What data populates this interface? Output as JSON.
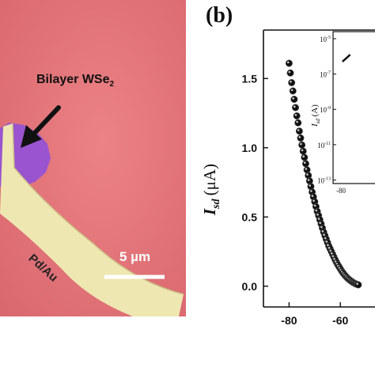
{
  "micrograph": {
    "sample_label": "Bilayer WSe",
    "sample_label_sub": "2",
    "contact_label": "Pd/Au",
    "scale_bar_label": "5 µm",
    "colors": {
      "substrate": "#e4797c",
      "flake": "#9a54cf",
      "metal": "#efe7b2",
      "arrow": "#111111"
    }
  },
  "panel_label": "(b)",
  "chart_data": [
    {
      "type": "scatter",
      "ylabel_main": "I",
      "ylabel_sub": "sd",
      "ylabel_unit": "(μA)",
      "ylim": [
        -0.15,
        1.85
      ],
      "yticks": [
        0.0,
        0.5,
        1.0,
        1.5
      ],
      "ytick_labels": [
        "0.0",
        "0.5",
        "1.0",
        "1.5"
      ],
      "xlim": [
        -90,
        -40
      ],
      "xticks": [
        -80,
        -60
      ],
      "xtick_labels": [
        "-80",
        "-60"
      ],
      "marker_color": "#111111",
      "x": [
        -80,
        -79.5,
        -79,
        -78.5,
        -78,
        -77.5,
        -77,
        -76.5,
        -76,
        -75.5,
        -75,
        -74.5,
        -74,
        -73.5,
        -73,
        -72.5,
        -72,
        -71.5,
        -71,
        -70.5,
        -70,
        -69.5,
        -69,
        -68.5,
        -68,
        -67.5,
        -67,
        -66.5,
        -66,
        -65.5,
        -65,
        -64.5,
        -64,
        -63.5,
        -63,
        -62.5,
        -62,
        -61.5,
        -61,
        -60.5,
        -60,
        -59.5,
        -59,
        -58.5,
        -58,
        -57.5,
        -57,
        -56.5,
        -56,
        -55.5,
        -55,
        -54.5,
        -54,
        -53.5,
        -53
      ],
      "y": [
        1.61,
        1.54,
        1.47,
        1.41,
        1.35,
        1.29,
        1.23,
        1.18,
        1.12,
        1.07,
        1.02,
        0.975,
        0.93,
        0.885,
        0.84,
        0.8,
        0.76,
        0.72,
        0.68,
        0.645,
        0.61,
        0.575,
        0.54,
        0.51,
        0.48,
        0.45,
        0.42,
        0.39,
        0.365,
        0.34,
        0.315,
        0.29,
        0.27,
        0.25,
        0.23,
        0.21,
        0.19,
        0.172,
        0.155,
        0.14,
        0.125,
        0.11,
        0.097,
        0.085,
        0.074,
        0.064,
        0.055,
        0.047,
        0.04,
        0.033,
        0.027,
        0.022,
        0.017,
        0.013,
        0.01
      ]
    },
    {
      "type": "line",
      "ylabel_main": "I",
      "ylabel_sub": "sd",
      "ylabel_unit": "(A)",
      "yscale": "log",
      "yticks": [
        -5,
        -7,
        -9,
        -11,
        -13
      ],
      "ytick_base": [
        "10",
        "10",
        "10",
        "10",
        "10"
      ],
      "ytick_exp": [
        "-5",
        "-7",
        "-9",
        "-11",
        "-13"
      ],
      "xtick_labels": [
        "-80"
      ],
      "x": [
        -80,
        -78
      ],
      "y_exp": [
        -6.3,
        -5.9
      ]
    }
  ]
}
